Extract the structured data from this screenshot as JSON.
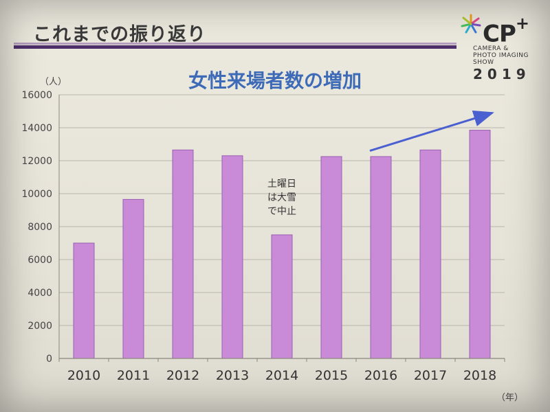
{
  "slide": {
    "title": "これまでの振り返り"
  },
  "logo": {
    "brand": "CP",
    "plus": "+",
    "line1": "CAMERA &",
    "line2": "PHOTO IMAGING",
    "line3": "SHOW",
    "year": "2019"
  },
  "chart_data": {
    "type": "bar",
    "title": "女性来場者数の増加",
    "y_unit": "（人）",
    "x_unit": "（年）",
    "categories": [
      "2010",
      "2011",
      "2012",
      "2013",
      "2014",
      "2015",
      "2016",
      "2017",
      "2018"
    ],
    "values": [
      7000,
      9650,
      12650,
      12300,
      7500,
      12250,
      12250,
      12650,
      13850
    ],
    "ylim": [
      0,
      16000
    ],
    "yticks": [
      "0",
      "2000",
      "4000",
      "6000",
      "8000",
      "10000",
      "12000",
      "14000",
      "16000"
    ],
    "grid": true,
    "legend": "none",
    "bar_color": "#c98ad8",
    "bar_edge_color": "#9a5fb0",
    "arrow_color": "#4a5fd0",
    "annotation": {
      "category": "2014",
      "lines": [
        "土曜日",
        "は大雪",
        "で中止"
      ]
    },
    "trend_arrow": {
      "from": {
        "category": "2016",
        "value": 12600
      },
      "to": {
        "category": "2018",
        "value": 14900
      }
    }
  }
}
